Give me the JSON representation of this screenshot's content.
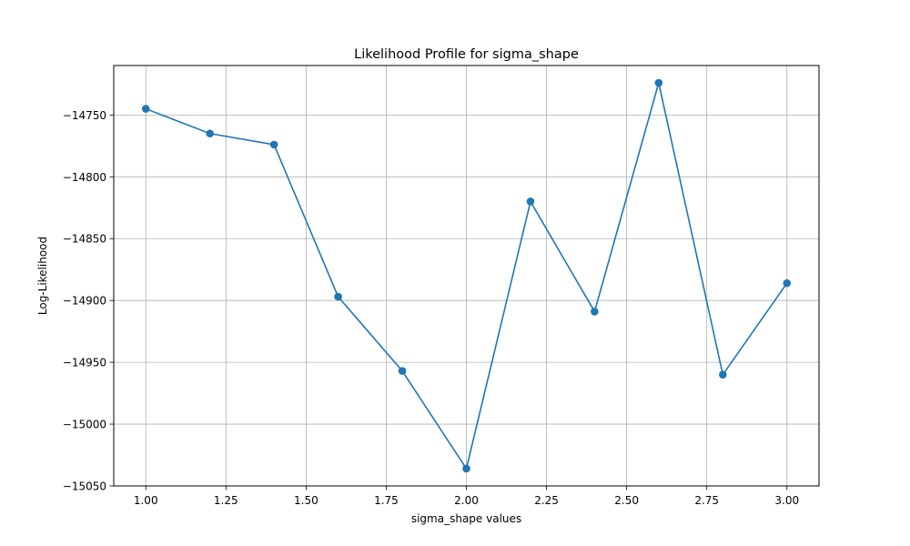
{
  "chart_data": {
    "type": "line",
    "title": "Likelihood Profile for sigma_shape",
    "xlabel": "sigma_shape values",
    "ylabel": "Log-Likelihood",
    "xlim": [
      0.9,
      3.1
    ],
    "ylim": [
      -15050,
      -14710
    ],
    "grid": true,
    "x_ticks": [
      1.0,
      1.25,
      1.5,
      1.75,
      2.0,
      2.25,
      2.5,
      2.75,
      3.0
    ],
    "x_tick_labels": [
      "1.00",
      "1.25",
      "1.50",
      "1.75",
      "2.00",
      "2.25",
      "2.50",
      "2.75",
      "3.00"
    ],
    "y_ticks": [
      -14750,
      -14800,
      -14850,
      -14900,
      -14950,
      -15000,
      -15050
    ],
    "y_tick_labels": [
      "−14750",
      "−14800",
      "−14850",
      "−14900",
      "−14950",
      "−15000",
      "−15050"
    ],
    "series": [
      {
        "name": "Log-Likelihood",
        "color": "#1f77b4",
        "marker": "circle",
        "x": [
          1.0,
          1.2,
          1.4,
          1.6,
          1.8,
          2.0,
          2.2,
          2.4,
          2.6,
          2.8,
          3.0
        ],
        "y": [
          -14745,
          -14765,
          -14774,
          -14897,
          -14957,
          -15036,
          -14820,
          -14909,
          -14724,
          -14960,
          -14886
        ]
      }
    ]
  }
}
